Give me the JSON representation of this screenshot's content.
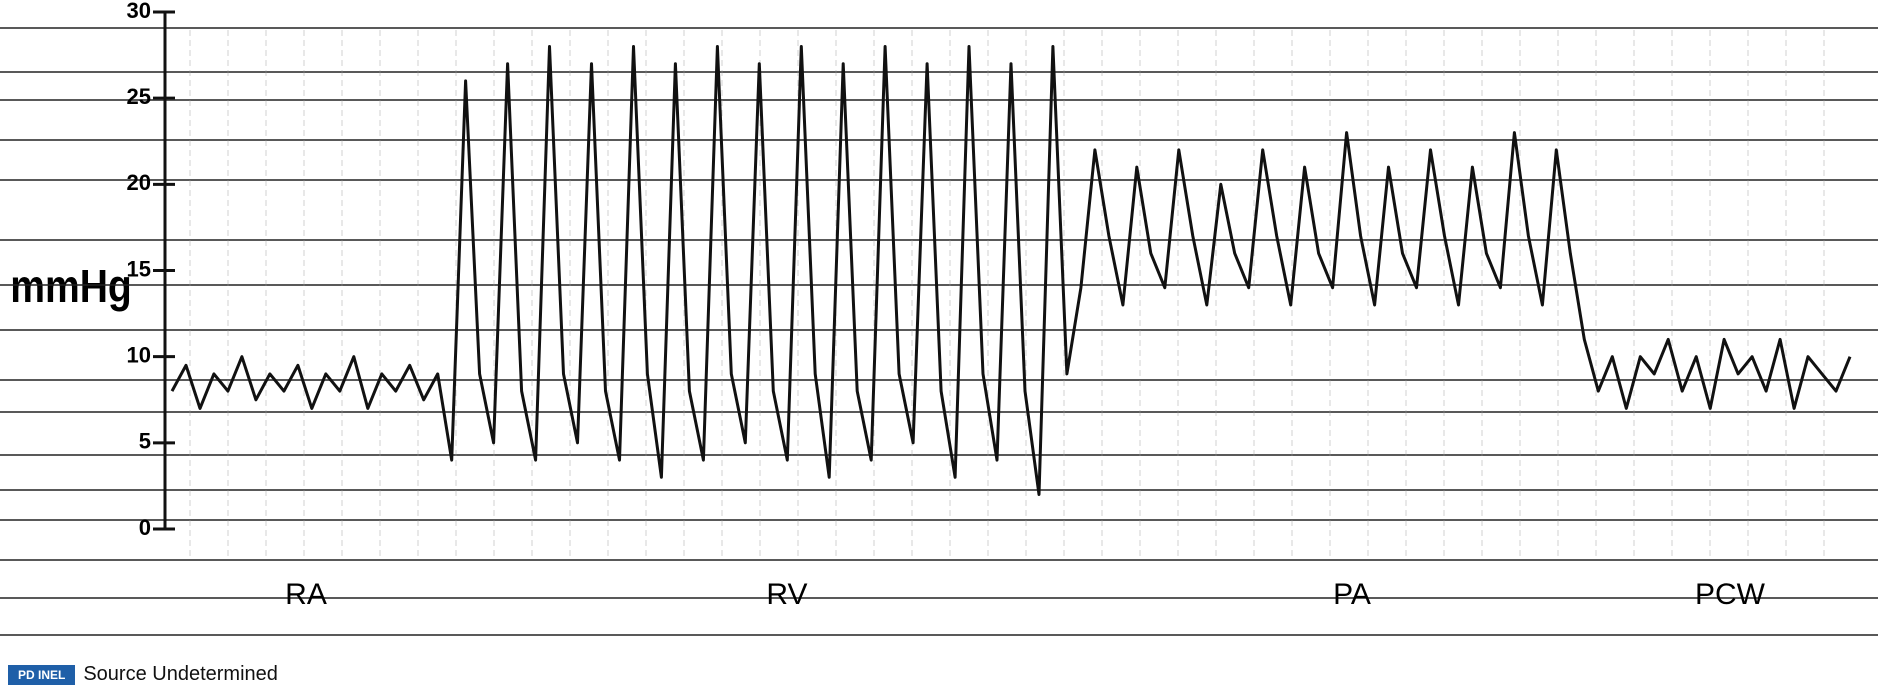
{
  "chart_data": {
    "type": "line",
    "y_label": "mmHg",
    "ylim": [
      0,
      30
    ],
    "yticks": [
      0,
      5,
      10,
      15,
      20,
      25,
      30
    ],
    "annotations": [
      "RA",
      "RV",
      "PA",
      "PCW"
    ],
    "series": [
      {
        "color": "#111111",
        "values": [
          8,
          9.5,
          7,
          9,
          8,
          10,
          7.5,
          9,
          8,
          9.5,
          7,
          9,
          8,
          10,
          7,
          9,
          8,
          9.5,
          7.5,
          9,
          4,
          26,
          9,
          5,
          27,
          8,
          4,
          28,
          9,
          5,
          27,
          8,
          4,
          28,
          9,
          3,
          27,
          8,
          4,
          28,
          9,
          5,
          27,
          8,
          4,
          28,
          9,
          3,
          27,
          8,
          4,
          28,
          9,
          5,
          27,
          8,
          3,
          28,
          9,
          4,
          27,
          8,
          2,
          28,
          9,
          14,
          22,
          17,
          13,
          21,
          16,
          14,
          22,
          17,
          13,
          20,
          16,
          14,
          22,
          17,
          13,
          21,
          16,
          14,
          23,
          17,
          13,
          21,
          16,
          14,
          22,
          17,
          13,
          21,
          16,
          14,
          23,
          17,
          13,
          22,
          16,
          11,
          8,
          10,
          7,
          10,
          9,
          11,
          8,
          10,
          7,
          11,
          9,
          10,
          8,
          11,
          7,
          10,
          9,
          8,
          10
        ]
      }
    ]
  },
  "footer": {
    "badge": "PD INEL",
    "source": "Source Undetermined"
  }
}
